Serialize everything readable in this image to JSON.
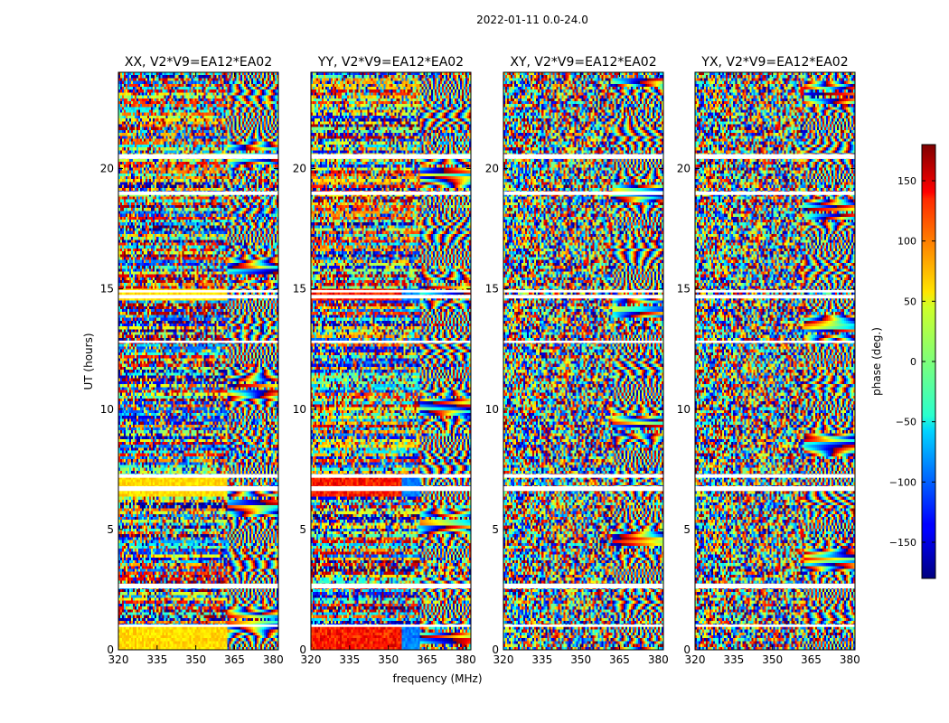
{
  "chart_data": {
    "type": "heatmap",
    "suptitle": "2022-01-11 0.0-24.0",
    "xlabel": "frequency (MHz)",
    "ylabel": "UT (hours)",
    "xlim": [
      320,
      382
    ],
    "ylim": [
      0,
      24
    ],
    "xticks": [
      "320",
      "335",
      "350",
      "365",
      "380"
    ],
    "xtick_values": [
      320,
      335,
      350,
      365,
      380
    ],
    "yticks": [
      "0",
      "5",
      "10",
      "15",
      "20"
    ],
    "ytick_values": [
      0,
      5,
      10,
      15,
      20
    ],
    "panels": [
      {
        "title": "XX, V2*V9=EA12*EA02",
        "corr": "XX"
      },
      {
        "title": "YY, V2*V9=EA12*EA02",
        "corr": "YY"
      },
      {
        "title": "XY, V2*V9=EA12*EA02",
        "corr": "XY"
      },
      {
        "title": "YX, V2*V9=EA12*EA02",
        "corr": "YX"
      }
    ],
    "colorbar": {
      "label": "phase (deg.)",
      "range": [
        -180,
        180
      ],
      "colormap": "jet",
      "ticks": [
        "150",
        "100",
        "50",
        "0",
        "−50",
        "−100",
        "−150"
      ],
      "tick_values": [
        150,
        100,
        50,
        0,
        -50,
        -100,
        -150
      ]
    },
    "flagged_ut_bands": [
      [
        0.95,
        1.05
      ],
      [
        2.55,
        2.75
      ],
      [
        6.6,
        6.8
      ],
      [
        7.15,
        7.3
      ],
      [
        12.75,
        12.85
      ],
      [
        14.6,
        14.75
      ],
      [
        14.85,
        14.95
      ],
      [
        18.9,
        19.05
      ],
      [
        20.4,
        20.6
      ]
    ]
  }
}
